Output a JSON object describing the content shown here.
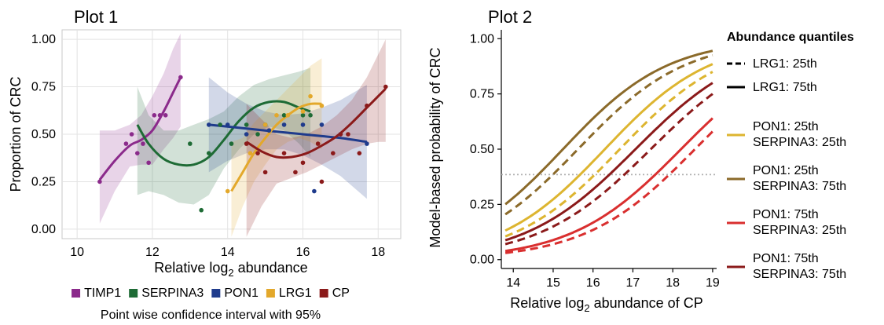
{
  "chart_data": [
    {
      "type": "scatter",
      "title": "Plot 1",
      "xlabel": "Relative log",
      "xlabel_sub": "2",
      "xlabel_rest": " abundance",
      "ylabel": "Proportion of CRC",
      "xlim": [
        9.6,
        18.6
      ],
      "ylim": [
        -0.05,
        1.05
      ],
      "xticks": [
        10,
        12,
        14,
        16,
        18
      ],
      "yticks": [
        0.0,
        0.25,
        0.5,
        0.75,
        1.0
      ],
      "ytick_labels": [
        "0.00",
        "0.25",
        "0.50",
        "0.75",
        "1.00"
      ],
      "grid": true,
      "legend_position": "bottom",
      "note": "Point wise confidence interval with 95%",
      "series": [
        {
          "name": "TIMP1",
          "color": "#8B2A8B",
          "points": [
            [
              10.6,
              0.25
            ],
            [
              11.3,
              0.45
            ],
            [
              11.45,
              0.5
            ],
            [
              11.6,
              0.4
            ],
            [
              11.75,
              0.45
            ],
            [
              11.9,
              0.35
            ],
            [
              12.05,
              0.6
            ],
            [
              12.2,
              0.6
            ],
            [
              12.35,
              0.6
            ],
            [
              12.75,
              0.8
            ]
          ],
          "curve": [
            [
              10.6,
              0.26
            ],
            [
              11.0,
              0.36
            ],
            [
              11.4,
              0.44
            ],
            [
              11.7,
              0.47
            ],
            [
              12.0,
              0.52
            ],
            [
              12.3,
              0.62
            ],
            [
              12.55,
              0.72
            ],
            [
              12.75,
              0.8
            ]
          ],
          "upper": [
            [
              10.6,
              0.52
            ],
            [
              11.0,
              0.52
            ],
            [
              11.4,
              0.55
            ],
            [
              11.7,
              0.6
            ],
            [
              12.0,
              0.7
            ],
            [
              12.3,
              0.82
            ],
            [
              12.55,
              0.95
            ],
            [
              12.75,
              1.03
            ]
          ],
          "lower": [
            [
              10.6,
              0.03
            ],
            [
              11.0,
              0.2
            ],
            [
              11.4,
              0.33
            ],
            [
              11.7,
              0.34
            ],
            [
              12.0,
              0.34
            ],
            [
              12.3,
              0.42
            ],
            [
              12.55,
              0.48
            ],
            [
              12.75,
              0.54
            ]
          ]
        },
        {
          "name": "SERPINA3",
          "color": "#1E6B35",
          "points": [
            [
              13.0,
              0.45
            ],
            [
              13.3,
              0.1
            ],
            [
              13.5,
              0.4
            ],
            [
              13.8,
              0.55
            ],
            [
              14.1,
              0.45
            ],
            [
              14.5,
              0.55
            ],
            [
              14.8,
              0.5
            ],
            [
              15.0,
              0.55
            ],
            [
              15.5,
              0.6
            ],
            [
              16.0,
              0.6
            ],
            [
              16.2,
              0.6
            ]
          ],
          "curve": [
            [
              11.6,
              0.55
            ],
            [
              11.9,
              0.45
            ],
            [
              12.3,
              0.37
            ],
            [
              12.7,
              0.34
            ],
            [
              13.1,
              0.34
            ],
            [
              13.5,
              0.38
            ],
            [
              13.9,
              0.47
            ],
            [
              14.3,
              0.57
            ],
            [
              14.7,
              0.64
            ],
            [
              15.1,
              0.67
            ],
            [
              15.5,
              0.67
            ],
            [
              15.9,
              0.64
            ],
            [
              16.2,
              0.62
            ]
          ],
          "upper": [
            [
              11.6,
              0.75
            ],
            [
              11.9,
              0.6
            ],
            [
              12.3,
              0.52
            ],
            [
              12.7,
              0.52
            ],
            [
              13.1,
              0.55
            ],
            [
              13.5,
              0.58
            ],
            [
              13.9,
              0.62
            ],
            [
              14.3,
              0.7
            ],
            [
              14.7,
              0.76
            ],
            [
              15.1,
              0.79
            ],
            [
              15.5,
              0.81
            ],
            [
              15.9,
              0.83
            ],
            [
              16.2,
              0.85
            ]
          ],
          "lower": [
            [
              11.6,
              0.18
            ],
            [
              11.9,
              0.2
            ],
            [
              12.3,
              0.18
            ],
            [
              12.7,
              0.14
            ],
            [
              13.1,
              0.13
            ],
            [
              13.5,
              0.18
            ],
            [
              13.9,
              0.32
            ],
            [
              14.3,
              0.42
            ],
            [
              14.7,
              0.5
            ],
            [
              15.1,
              0.54
            ],
            [
              15.5,
              0.52
            ],
            [
              15.9,
              0.45
            ],
            [
              16.2,
              0.38
            ]
          ]
        },
        {
          "name": "PON1",
          "color": "#1F3B8C",
          "points": [
            [
              13.5,
              0.55
            ],
            [
              14.0,
              0.55
            ],
            [
              14.5,
              0.5
            ],
            [
              15.1,
              0.52
            ],
            [
              15.5,
              0.55
            ],
            [
              16.0,
              0.55
            ],
            [
              16.3,
              0.2
            ],
            [
              16.5,
              0.55
            ],
            [
              17.0,
              0.5
            ],
            [
              17.7,
              0.45
            ]
          ],
          "curve": [
            [
              13.5,
              0.55
            ],
            [
              14.0,
              0.54
            ],
            [
              14.5,
              0.53
            ],
            [
              15.0,
              0.52
            ],
            [
              15.5,
              0.51
            ],
            [
              16.0,
              0.5
            ],
            [
              16.5,
              0.49
            ],
            [
              17.0,
              0.48
            ],
            [
              17.7,
              0.46
            ]
          ],
          "upper": [
            [
              13.5,
              0.8
            ],
            [
              14.0,
              0.72
            ],
            [
              14.5,
              0.66
            ],
            [
              15.0,
              0.62
            ],
            [
              15.5,
              0.6
            ],
            [
              16.0,
              0.61
            ],
            [
              16.5,
              0.64
            ],
            [
              17.0,
              0.68
            ],
            [
              17.7,
              0.76
            ]
          ],
          "lower": [
            [
              13.5,
              0.3
            ],
            [
              14.0,
              0.36
            ],
            [
              14.5,
              0.4
            ],
            [
              15.0,
              0.42
            ],
            [
              15.5,
              0.42
            ],
            [
              16.0,
              0.39
            ],
            [
              16.5,
              0.34
            ],
            [
              17.0,
              0.28
            ],
            [
              17.7,
              0.16
            ]
          ]
        },
        {
          "name": "LRG1",
          "color": "#E3A82B",
          "points": [
            [
              14.0,
              0.2
            ],
            [
              14.6,
              0.4
            ],
            [
              15.0,
              0.55
            ],
            [
              15.3,
              0.6
            ],
            [
              15.6,
              0.6
            ],
            [
              16.0,
              0.62
            ],
            [
              16.2,
              0.7
            ],
            [
              16.5,
              0.65
            ]
          ],
          "curve": [
            [
              14.1,
              0.2
            ],
            [
              14.4,
              0.3
            ],
            [
              14.7,
              0.4
            ],
            [
              15.0,
              0.48
            ],
            [
              15.3,
              0.55
            ],
            [
              15.6,
              0.6
            ],
            [
              15.9,
              0.64
            ],
            [
              16.2,
              0.66
            ],
            [
              16.5,
              0.66
            ]
          ],
          "upper": [
            [
              14.1,
              0.46
            ],
            [
              14.4,
              0.48
            ],
            [
              14.7,
              0.56
            ],
            [
              15.0,
              0.62
            ],
            [
              15.3,
              0.68
            ],
            [
              15.6,
              0.74
            ],
            [
              15.9,
              0.8
            ],
            [
              16.2,
              0.86
            ],
            [
              16.5,
              0.9
            ]
          ],
          "lower": [
            [
              14.1,
              -0.04
            ],
            [
              14.4,
              0.12
            ],
            [
              14.7,
              0.25
            ],
            [
              15.0,
              0.34
            ],
            [
              15.3,
              0.42
            ],
            [
              15.6,
              0.46
            ],
            [
              15.9,
              0.48
            ],
            [
              16.2,
              0.46
            ],
            [
              16.5,
              0.42
            ]
          ]
        },
        {
          "name": "CP",
          "color": "#8B1A1A",
          "points": [
            [
              14.5,
              0.45
            ],
            [
              14.8,
              0.4
            ],
            [
              15.0,
              0.3
            ],
            [
              15.5,
              0.4
            ],
            [
              15.8,
              0.3
            ],
            [
              16.0,
              0.35
            ],
            [
              16.4,
              0.45
            ],
            [
              16.5,
              0.25
            ],
            [
              16.8,
              0.4
            ],
            [
              17.0,
              0.5
            ],
            [
              17.2,
              0.5
            ],
            [
              17.5,
              0.4
            ],
            [
              17.7,
              0.65
            ],
            [
              18.2,
              0.75
            ]
          ],
          "curve": [
            [
              14.5,
              0.46
            ],
            [
              14.9,
              0.41
            ],
            [
              15.3,
              0.38
            ],
            [
              15.7,
              0.38
            ],
            [
              16.1,
              0.4
            ],
            [
              16.5,
              0.44
            ],
            [
              16.9,
              0.49
            ],
            [
              17.3,
              0.56
            ],
            [
              17.7,
              0.64
            ],
            [
              18.0,
              0.7
            ],
            [
              18.2,
              0.74
            ]
          ],
          "upper": [
            [
              14.5,
              0.66
            ],
            [
              14.9,
              0.58
            ],
            [
              15.3,
              0.5
            ],
            [
              15.7,
              0.48
            ],
            [
              16.1,
              0.5
            ],
            [
              16.5,
              0.54
            ],
            [
              16.9,
              0.6
            ],
            [
              17.3,
              0.68
            ],
            [
              17.7,
              0.8
            ],
            [
              18.0,
              0.92
            ],
            [
              18.2,
              1.0
            ]
          ],
          "lower": [
            [
              14.5,
              -0.04
            ],
            [
              14.9,
              0.12
            ],
            [
              15.3,
              0.24
            ],
            [
              15.7,
              0.27
            ],
            [
              16.1,
              0.3
            ],
            [
              16.5,
              0.34
            ],
            [
              16.9,
              0.38
            ],
            [
              17.3,
              0.42
            ],
            [
              17.7,
              0.45
            ],
            [
              18.0,
              0.46
            ],
            [
              18.2,
              0.46
            ]
          ]
        }
      ]
    },
    {
      "type": "line",
      "title": "Plot 2",
      "xlabel": "Relative log",
      "xlabel_sub": "2",
      "xlabel_rest": " abundance of CP",
      "ylabel": "Model-based probability of CRC",
      "xlim": [
        13.7,
        19.1
      ],
      "ylim": [
        -0.04,
        1.04
      ],
      "xticks": [
        14,
        15,
        16,
        17,
        18,
        19
      ],
      "yticks": [
        0.0,
        0.25,
        0.5,
        0.75,
        1.0
      ],
      "ytick_labels": [
        "0.00",
        "0.25",
        "0.50",
        "0.75",
        "1.00"
      ],
      "reference_line": 0.385,
      "grid": false,
      "legend_position": "right",
      "legend_title": "Abundance quantiles",
      "legend_line_entries": [
        {
          "label": [
            "LRG1: 25th"
          ],
          "dash": "dashed"
        },
        {
          "label": [
            "LRG1: 75th"
          ],
          "dash": "solid"
        }
      ],
      "legend_color_entries": [
        {
          "label": [
            "PON1: 25th",
            "SERPINA3: 25th"
          ],
          "color": "#DDB530"
        },
        {
          "label": [
            "PON1: 25th",
            "SERPINA3: 75th"
          ],
          "color": "#8B6A2A"
        },
        {
          "label": [
            "PON1: 75th",
            "SERPINA3: 25th"
          ],
          "color": "#D92F2F"
        },
        {
          "label": [
            "PON1: 75th",
            "SERPINA3: 75th"
          ],
          "color": "#8B1A1A"
        }
      ],
      "series": [
        {
          "group": "PON1 25th / SERPINA3 75th",
          "lrg1": "75th",
          "color": "#8B6A2A",
          "dash": "solid",
          "y_at_14": 0.28,
          "y_at_19": 0.945
        },
        {
          "group": "PON1 25th / SERPINA3 75th",
          "lrg1": "25th",
          "color": "#8B6A2A",
          "dash": "dashed",
          "y_at_14": 0.23,
          "y_at_19": 0.925
        },
        {
          "group": "PON1 25th / SERPINA3 25th",
          "lrg1": "75th",
          "color": "#DDB530",
          "dash": "solid",
          "y_at_14": 0.15,
          "y_at_19": 0.885
        },
        {
          "group": "PON1 25th / SERPINA3 25th",
          "lrg1": "25th",
          "color": "#DDB530",
          "dash": "dashed",
          "y_at_14": 0.12,
          "y_at_19": 0.85
        },
        {
          "group": "PON1 75th / SERPINA3 75th",
          "lrg1": "75th",
          "color": "#8B1A1A",
          "dash": "solid",
          "y_at_14": 0.1,
          "y_at_19": 0.8
        },
        {
          "group": "PON1 75th / SERPINA3 75th",
          "lrg1": "25th",
          "color": "#8B1A1A",
          "dash": "dashed",
          "y_at_14": 0.08,
          "y_at_19": 0.75
        },
        {
          "group": "PON1 75th / SERPINA3 25th",
          "lrg1": "75th",
          "color": "#D92F2F",
          "dash": "solid",
          "y_at_14": 0.045,
          "y_at_19": 0.64
        },
        {
          "group": "PON1 75th / SERPINA3 25th",
          "lrg1": "25th",
          "color": "#D92F2F",
          "dash": "dashed",
          "y_at_14": 0.035,
          "y_at_19": 0.58
        }
      ]
    }
  ]
}
